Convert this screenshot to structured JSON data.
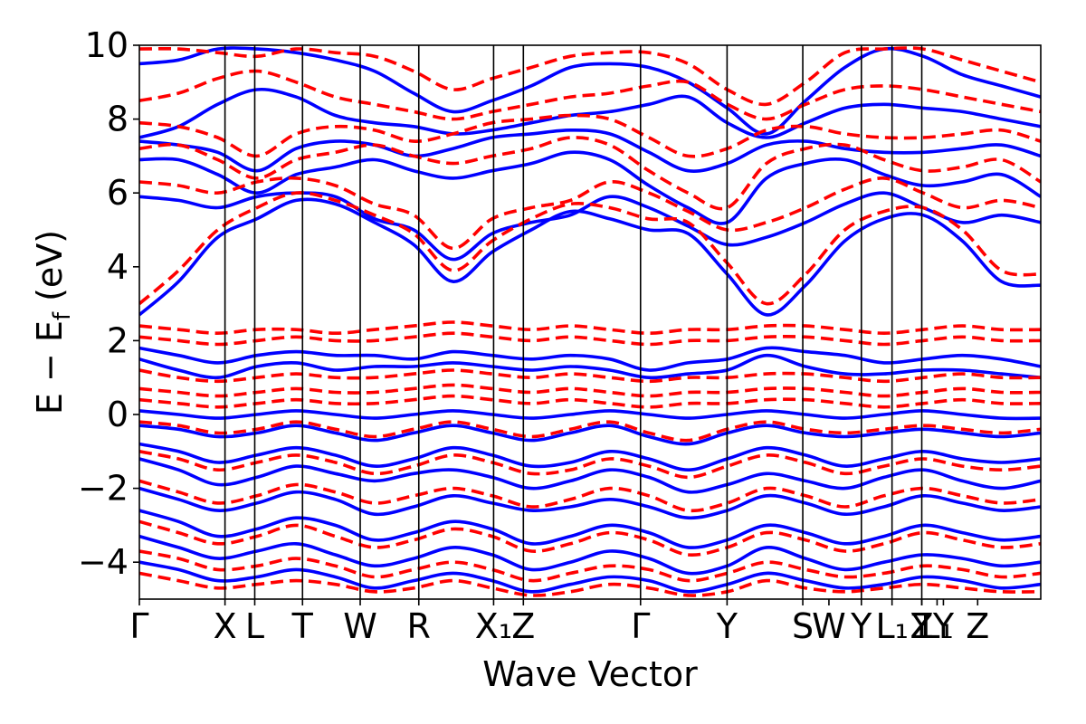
{
  "chart_data": {
    "type": "line",
    "title": "",
    "xlabel": "Wave Vector",
    "ylabel": "E − E_f (eV)",
    "ylabel_parts": {
      "main": "E − E",
      "sub": "f",
      "unit": " (eV)"
    },
    "ylim": [
      -5,
      10
    ],
    "yticks": [
      -4,
      -2,
      0,
      2,
      4,
      6,
      8,
      10
    ],
    "ytick_labels": [
      "−4",
      "−2",
      "0",
      "2",
      "4",
      "6",
      "8",
      "10"
    ],
    "xlim": [
      0,
      10
    ],
    "kpoints": [
      {
        "label": "Γ",
        "x": 0.0
      },
      {
        "label": "X",
        "x": 0.95
      },
      {
        "label": "L",
        "x": 1.28
      },
      {
        "label": "T",
        "x": 1.81
      },
      {
        "label": "W",
        "x": 2.45
      },
      {
        "label": "R",
        "x": 3.1
      },
      {
        "label": "X₁",
        "x": 3.93
      },
      {
        "label": "Z",
        "x": 4.26
      },
      {
        "label": "Γ",
        "x": 5.56
      },
      {
        "label": "Y",
        "x": 6.52
      },
      {
        "label": "S",
        "x": 7.36
      },
      {
        "label": "W",
        "x": 7.65
      },
      {
        "label": "Y",
        "x": 8.01
      },
      {
        "label": "L₁",
        "x": 8.35
      },
      {
        "label": "Y",
        "x": 8.68
      },
      {
        "label": "Z",
        "x": 8.68
      },
      {
        "label": "L₁",
        "x": 8.85
      },
      {
        "label": "Y",
        "x": 8.92
      },
      {
        "label": "Z",
        "x": 9.3
      }
    ],
    "kline_x": [
      0.95,
      1.28,
      1.81,
      2.45,
      3.1,
      3.93,
      4.26,
      5.56,
      6.52,
      7.36,
      8.01,
      8.35,
      8.68
    ],
    "series": [
      {
        "name": "spin-up",
        "color": "#0000ff",
        "style": "solid",
        "description": "solid blue bands",
        "bands": [
          [
            2.7,
            3.6,
            4.8,
            5.3,
            5.8,
            5.7,
            5.2,
            4.6,
            3.6,
            4.4,
            5.0,
            5.5,
            5.3,
            5.0,
            4.9,
            3.8,
            2.7,
            3.5,
            4.7,
            5.3,
            5.4,
            4.7,
            3.6,
            3.5
          ],
          [
            5.9,
            5.8,
            5.6,
            5.9,
            6.0,
            5.9,
            5.3,
            5.0,
            4.2,
            4.9,
            5.2,
            5.4,
            5.9,
            5.6,
            5.1,
            4.6,
            4.8,
            5.2,
            5.7,
            6.0,
            5.6,
            5.2,
            5.4,
            5.2
          ],
          [
            6.9,
            6.9,
            6.5,
            6.0,
            6.5,
            6.7,
            6.9,
            6.6,
            6.4,
            6.6,
            6.8,
            7.1,
            6.9,
            6.2,
            5.6,
            5.2,
            6.4,
            6.8,
            6.9,
            6.5,
            6.2,
            6.3,
            6.5,
            5.9
          ],
          [
            7.4,
            7.3,
            7.1,
            6.6,
            7.2,
            7.4,
            7.3,
            7.0,
            7.2,
            7.5,
            7.6,
            7.7,
            7.6,
            7.1,
            6.6,
            6.8,
            7.3,
            7.4,
            7.2,
            7.1,
            7.1,
            7.2,
            7.3,
            7.0
          ],
          [
            7.5,
            7.8,
            8.4,
            8.8,
            8.6,
            8.1,
            7.9,
            7.8,
            7.6,
            7.7,
            7.9,
            8.1,
            8.2,
            8.4,
            8.6,
            7.9,
            7.5,
            7.9,
            8.3,
            8.4,
            8.3,
            8.2,
            8.0,
            7.8
          ],
          [
            9.5,
            9.6,
            9.9,
            9.9,
            9.8,
            9.6,
            9.3,
            8.7,
            8.2,
            8.5,
            8.9,
            9.4,
            9.5,
            9.4,
            9.0,
            8.3,
            7.6,
            8.5,
            9.4,
            9.9,
            9.7,
            9.2,
            8.9,
            8.6
          ],
          [
            1.8,
            1.6,
            1.4,
            1.6,
            1.7,
            1.6,
            1.6,
            1.5,
            1.7,
            1.6,
            1.5,
            1.6,
            1.5,
            1.2,
            1.4,
            1.5,
            1.8,
            1.7,
            1.6,
            1.4,
            1.5,
            1.6,
            1.5,
            1.3
          ],
          [
            1.5,
            1.2,
            1.0,
            1.3,
            1.4,
            1.2,
            1.3,
            1.3,
            1.4,
            1.3,
            1.2,
            1.3,
            1.2,
            1.0,
            1.1,
            1.2,
            1.6,
            1.3,
            1.1,
            1.1,
            1.2,
            1.2,
            1.1,
            1.0
          ],
          [
            0.1,
            0.0,
            -0.1,
            0.0,
            0.1,
            0.0,
            -0.1,
            0.0,
            0.1,
            0.0,
            -0.1,
            0.0,
            0.1,
            0.0,
            -0.1,
            0.0,
            0.1,
            0.0,
            -0.1,
            0.0,
            0.1,
            0.0,
            -0.1,
            -0.1
          ],
          [
            -0.3,
            -0.4,
            -0.6,
            -0.5,
            -0.3,
            -0.5,
            -0.7,
            -0.5,
            -0.3,
            -0.5,
            -0.7,
            -0.5,
            -0.3,
            -0.6,
            -0.8,
            -0.5,
            -0.3,
            -0.5,
            -0.6,
            -0.5,
            -0.4,
            -0.5,
            -0.6,
            -0.5
          ],
          [
            -0.8,
            -1.0,
            -1.3,
            -1.1,
            -0.9,
            -1.1,
            -1.4,
            -1.2,
            -0.9,
            -1.1,
            -1.4,
            -1.3,
            -1.0,
            -1.2,
            -1.5,
            -1.2,
            -0.9,
            -1.1,
            -1.4,
            -1.2,
            -1.0,
            -1.2,
            -1.3,
            -1.2
          ],
          [
            -1.2,
            -1.5,
            -1.9,
            -1.7,
            -1.4,
            -1.6,
            -1.8,
            -1.6,
            -1.5,
            -1.7,
            -2.0,
            -1.8,
            -1.5,
            -1.7,
            -2.1,
            -1.9,
            -1.6,
            -1.8,
            -2.0,
            -1.7,
            -1.5,
            -1.8,
            -2.0,
            -1.8
          ],
          [
            -2.0,
            -2.3,
            -2.6,
            -2.4,
            -2.1,
            -2.3,
            -2.7,
            -2.5,
            -2.2,
            -2.4,
            -2.6,
            -2.5,
            -2.3,
            -2.5,
            -2.8,
            -2.6,
            -2.2,
            -2.4,
            -2.7,
            -2.5,
            -2.2,
            -2.4,
            -2.6,
            -2.5
          ],
          [
            -2.6,
            -2.9,
            -3.3,
            -3.1,
            -2.8,
            -3.0,
            -3.4,
            -3.2,
            -2.9,
            -3.1,
            -3.5,
            -3.3,
            -3.0,
            -3.2,
            -3.6,
            -3.4,
            -3.0,
            -3.2,
            -3.5,
            -3.3,
            -3.0,
            -3.2,
            -3.4,
            -3.3
          ],
          [
            -3.3,
            -3.6,
            -3.9,
            -3.7,
            -3.5,
            -3.8,
            -4.1,
            -3.9,
            -3.6,
            -3.8,
            -4.2,
            -4.0,
            -3.7,
            -3.9,
            -4.3,
            -4.1,
            -3.6,
            -3.9,
            -4.2,
            -4.0,
            -3.8,
            -3.9,
            -4.1,
            -4.0
          ],
          [
            -4.0,
            -4.2,
            -4.5,
            -4.4,
            -4.2,
            -4.4,
            -4.7,
            -4.5,
            -4.3,
            -4.5,
            -4.8,
            -4.6,
            -4.4,
            -4.5,
            -4.8,
            -4.6,
            -4.3,
            -4.5,
            -4.7,
            -4.6,
            -4.4,
            -4.5,
            -4.7,
            -4.6
          ]
        ]
      },
      {
        "name": "spin-down",
        "color": "#ff0000",
        "style": "dashed",
        "description": "dashed red bands",
        "bands": [
          [
            3.0,
            3.9,
            5.0,
            5.6,
            6.0,
            5.8,
            5.4,
            4.9,
            3.9,
            4.7,
            5.3,
            5.7,
            5.6,
            5.3,
            5.2,
            4.1,
            3.0,
            3.8,
            5.0,
            5.5,
            5.6,
            5.0,
            3.9,
            3.8
          ],
          [
            6.3,
            6.2,
            6.0,
            6.3,
            6.4,
            6.2,
            5.7,
            5.4,
            4.5,
            5.3,
            5.6,
            5.8,
            6.3,
            6.0,
            5.5,
            5.0,
            5.2,
            5.6,
            6.1,
            6.4,
            6.0,
            5.6,
            5.8,
            5.6
          ],
          [
            7.2,
            7.3,
            6.9,
            6.4,
            6.9,
            7.1,
            7.3,
            7.0,
            6.8,
            7.0,
            7.2,
            7.5,
            7.3,
            6.6,
            6.0,
            5.6,
            6.8,
            7.2,
            7.3,
            6.9,
            6.6,
            6.7,
            6.9,
            6.3
          ],
          [
            7.9,
            7.8,
            7.5,
            7.0,
            7.6,
            7.8,
            7.7,
            7.4,
            7.6,
            7.9,
            8.0,
            8.1,
            8.0,
            7.5,
            7.0,
            7.2,
            7.7,
            7.8,
            7.6,
            7.5,
            7.5,
            7.6,
            7.7,
            7.4
          ],
          [
            8.5,
            8.7,
            9.1,
            9.3,
            9.0,
            8.6,
            8.4,
            8.2,
            8.0,
            8.2,
            8.4,
            8.6,
            8.7,
            8.9,
            9.0,
            8.4,
            8.0,
            8.4,
            8.8,
            8.9,
            8.8,
            8.6,
            8.4,
            8.2
          ],
          [
            9.9,
            9.9,
            9.8,
            9.7,
            9.9,
            9.8,
            9.7,
            9.3,
            8.8,
            9.1,
            9.4,
            9.7,
            9.8,
            9.8,
            9.5,
            8.8,
            8.4,
            9.0,
            9.8,
            9.9,
            9.9,
            9.6,
            9.3,
            9.0
          ],
          [
            2.4,
            2.3,
            2.2,
            2.3,
            2.3,
            2.2,
            2.3,
            2.4,
            2.5,
            2.4,
            2.3,
            2.4,
            2.3,
            2.2,
            2.3,
            2.3,
            2.4,
            2.4,
            2.3,
            2.2,
            2.3,
            2.4,
            2.3,
            2.3
          ],
          [
            2.1,
            2.0,
            1.9,
            2.0,
            2.1,
            2.0,
            2.0,
            2.1,
            2.2,
            2.1,
            2.0,
            2.1,
            2.0,
            1.9,
            2.0,
            2.0,
            2.1,
            2.1,
            2.0,
            1.9,
            2.0,
            2.1,
            2.0,
            2.0
          ],
          [
            1.2,
            1.0,
            0.9,
            1.0,
            1.1,
            1.0,
            1.0,
            1.1,
            1.2,
            1.1,
            1.0,
            1.1,
            1.0,
            0.9,
            1.0,
            1.0,
            1.1,
            1.1,
            1.0,
            0.9,
            1.0,
            1.1,
            1.0,
            1.0
          ],
          [
            0.7,
            0.6,
            0.5,
            0.6,
            0.7,
            0.6,
            0.6,
            0.7,
            0.8,
            0.7,
            0.6,
            0.7,
            0.6,
            0.5,
            0.6,
            0.6,
            0.7,
            0.7,
            0.6,
            0.5,
            0.6,
            0.7,
            0.6,
            0.6
          ],
          [
            0.4,
            0.3,
            0.2,
            0.3,
            0.4,
            0.3,
            0.3,
            0.4,
            0.5,
            0.4,
            0.3,
            0.4,
            0.3,
            0.2,
            0.3,
            0.3,
            0.4,
            0.4,
            0.3,
            0.2,
            0.3,
            0.4,
            0.3,
            0.3
          ],
          [
            -0.2,
            -0.3,
            -0.5,
            -0.4,
            -0.2,
            -0.4,
            -0.6,
            -0.4,
            -0.2,
            -0.4,
            -0.6,
            -0.4,
            -0.2,
            -0.5,
            -0.7,
            -0.4,
            -0.2,
            -0.4,
            -0.5,
            -0.4,
            -0.3,
            -0.4,
            -0.5,
            -0.4
          ],
          [
            -1.0,
            -1.2,
            -1.5,
            -1.3,
            -1.1,
            -1.3,
            -1.6,
            -1.4,
            -1.1,
            -1.3,
            -1.6,
            -1.5,
            -1.2,
            -1.4,
            -1.7,
            -1.4,
            -1.1,
            -1.3,
            -1.6,
            -1.4,
            -1.2,
            -1.4,
            -1.5,
            -1.4
          ],
          [
            -1.8,
            -2.1,
            -2.4,
            -2.2,
            -1.9,
            -2.1,
            -2.4,
            -2.2,
            -2.0,
            -2.2,
            -2.5,
            -2.3,
            -2.0,
            -2.2,
            -2.6,
            -2.4,
            -2.0,
            -2.2,
            -2.5,
            -2.2,
            -2.0,
            -2.2,
            -2.4,
            -2.3
          ],
          [
            -2.9,
            -3.2,
            -3.5,
            -3.3,
            -3.0,
            -3.3,
            -3.6,
            -3.4,
            -3.1,
            -3.3,
            -3.7,
            -3.5,
            -3.2,
            -3.4,
            -3.8,
            -3.6,
            -3.2,
            -3.4,
            -3.7,
            -3.5,
            -3.2,
            -3.4,
            -3.6,
            -3.5
          ],
          [
            -3.7,
            -3.9,
            -4.2,
            -4.1,
            -3.9,
            -4.1,
            -4.4,
            -4.2,
            -4.0,
            -4.2,
            -4.5,
            -4.3,
            -4.1,
            -4.2,
            -4.5,
            -4.3,
            -4.0,
            -4.2,
            -4.4,
            -4.3,
            -4.1,
            -4.2,
            -4.4,
            -4.3
          ],
          [
            -4.3,
            -4.5,
            -4.7,
            -4.6,
            -4.5,
            -4.6,
            -4.8,
            -4.7,
            -4.5,
            -4.7,
            -4.9,
            -4.8,
            -4.6,
            -4.7,
            -4.9,
            -4.8,
            -4.5,
            -4.7,
            -4.8,
            -4.7,
            -4.6,
            -4.7,
            -4.8,
            -4.8
          ]
        ]
      }
    ]
  }
}
